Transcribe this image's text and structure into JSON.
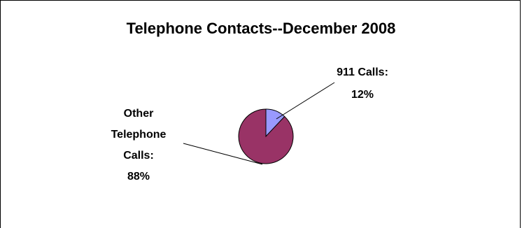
{
  "chart_data": {
    "type": "pie",
    "title": "Telephone Contacts--December 2008",
    "slices": [
      {
        "label": "911 Calls:",
        "value_label": "12%",
        "value": 12,
        "color": "#9999ff"
      },
      {
        "label": "Other Telephone Calls:",
        "label_lines": [
          "Other",
          "Telephone",
          "Calls:"
        ],
        "value_label": "88%",
        "value": 88,
        "color": "#993366"
      }
    ]
  }
}
